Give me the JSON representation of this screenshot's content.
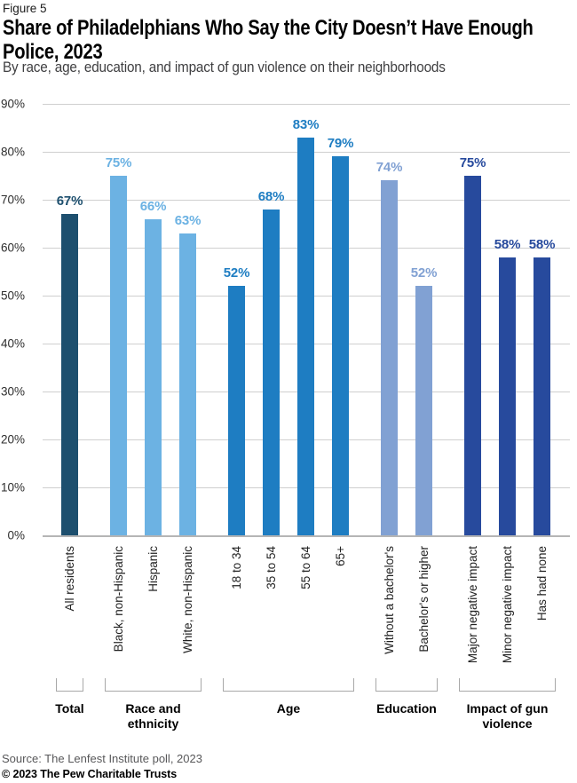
{
  "figure_label": "Figure 5",
  "header": {
    "title_lines": [
      "Share of Philadelphians Who Say the City Doesn’t Have Enough",
      "Police, 2023"
    ],
    "subtitle": "By race, age, education, and impact of gun violence on their neighborhoods"
  },
  "chart_data": {
    "type": "bar",
    "title": "Share of Philadelphians Who Say the City Doesn’t Have Enough Police, 2023",
    "subtitle": "By race, age, education, and impact of gun violence on their neighborhoods",
    "ylim": [
      0,
      90
    ],
    "y_ticks": [
      "0%",
      "10%",
      "20%",
      "30%",
      "40%",
      "50%",
      "60%",
      "70%",
      "80%",
      "90%"
    ],
    "grid": true,
    "value_suffix": "%",
    "groups": [
      {
        "label": "Total",
        "color": "#1d4f6e",
        "bars": [
          {
            "category": "All residents",
            "value": 67
          }
        ]
      },
      {
        "label": "Race and ethnicity",
        "color": "#6cb2e3",
        "bars": [
          {
            "category": "Black, non-Hispanic",
            "value": 75
          },
          {
            "category": "Hispanic",
            "value": 66
          },
          {
            "category": "White, non-Hispanic",
            "value": 63
          }
        ]
      },
      {
        "label": "Age",
        "color": "#1e7dc2",
        "bars": [
          {
            "category": "18 to 34",
            "value": 52
          },
          {
            "category": "35 to 54",
            "value": 68
          },
          {
            "category": "55 to 64",
            "value": 83
          },
          {
            "category": "65+",
            "value": 79
          }
        ]
      },
      {
        "label": "Education",
        "color": "#81a1d3",
        "bars": [
          {
            "category": "Without a bachelor's",
            "value": 74
          },
          {
            "category": "Bachelor's or higher",
            "value": 52
          }
        ]
      },
      {
        "label": "Impact of gun violence",
        "color": "#274a9d",
        "bars": [
          {
            "category": "Major negative impact",
            "value": 75
          },
          {
            "category": "Minor negative impact",
            "value": 58
          },
          {
            "category": "Has had none",
            "value": 58
          }
        ]
      }
    ]
  },
  "footer": {
    "source": "Source: The Lenfest Institute poll, 2023",
    "copyright": "© 2023 The Pew Charitable Trusts"
  }
}
